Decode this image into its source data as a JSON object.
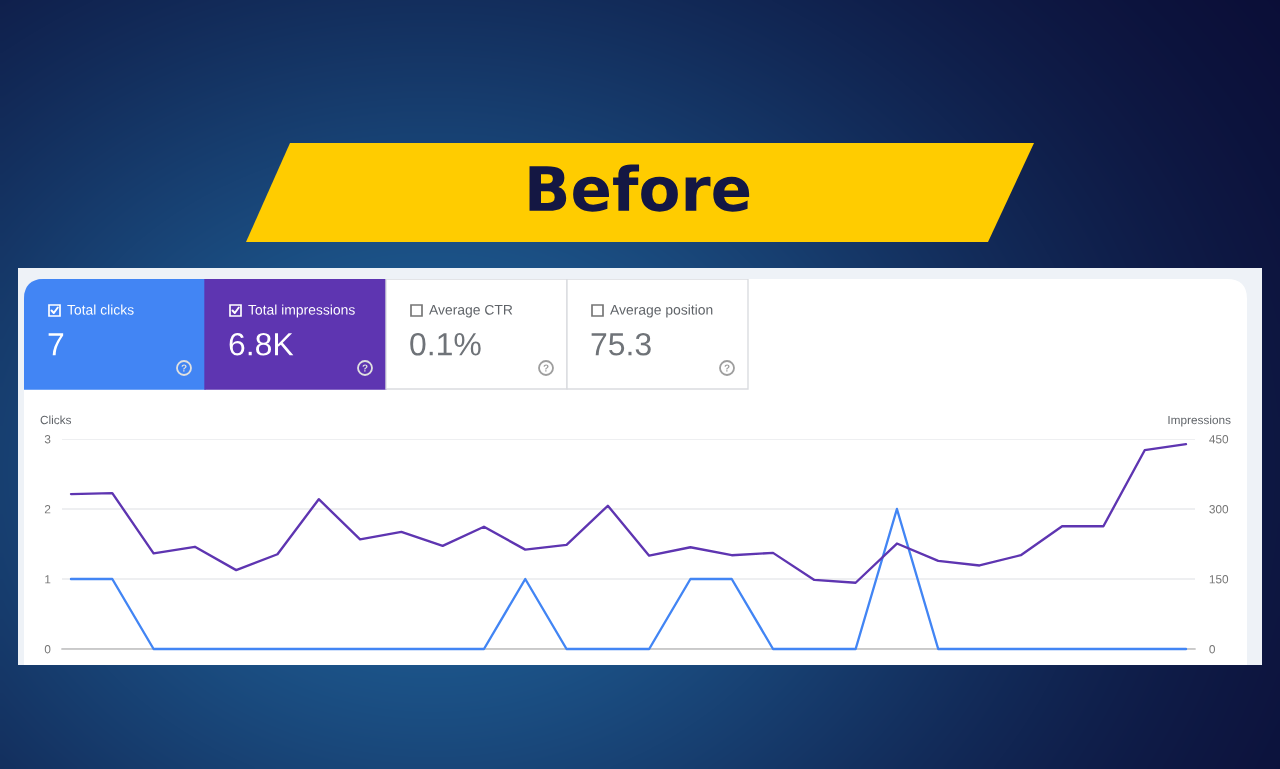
{
  "chart_data": [
    {
      "type": "other",
      "title": "Before",
      "categories": [
        "Total clicks",
        "Total impressions",
        "Average CTR",
        "Average position"
      ],
      "value_labels": [
        "7",
        "6.8K",
        "0.1%",
        "75.3"
      ],
      "colors": [
        "#4285f4",
        "#5e35b1",
        "#ffffff",
        "#ffffff"
      ]
    },
    {
      "type": "line",
      "categories": [
        null,
        null,
        null,
        null,
        null,
        null,
        null,
        null,
        null,
        null,
        null,
        null,
        null,
        null,
        null,
        null,
        null,
        null,
        null,
        null,
        null,
        null,
        null,
        null,
        null,
        null,
        null,
        null
      ],
      "ylabel": "Clicks",
      "y2label": "Impressions",
      "ylim": [
        0,
        3
      ],
      "yticks": [
        0,
        1,
        2,
        3
      ],
      "y2lim": [
        0,
        450
      ],
      "y2ticks": [
        0,
        150,
        300,
        450
      ],
      "grid": "y",
      "series": [
        {
          "color": "#4285f4",
          "values": [
            1,
            1,
            0,
            0,
            0,
            0,
            0,
            0,
            0,
            0,
            0,
            1,
            0,
            0,
            0,
            1,
            1,
            0,
            0,
            0,
            2,
            0,
            0,
            0,
            0,
            0,
            0,
            0
          ]
        },
        {
          "color": "#5e35b1",
          "axis": "y2",
          "values": [
            332,
            334,
            205,
            219,
            169,
            203,
            321,
            235,
            251,
            221,
            262,
            213,
            223,
            307,
            200,
            218,
            201,
            206,
            148,
            142,
            226,
            189,
            179,
            201,
            263,
            263,
            426,
            439
          ]
        }
      ]
    }
  ]
}
